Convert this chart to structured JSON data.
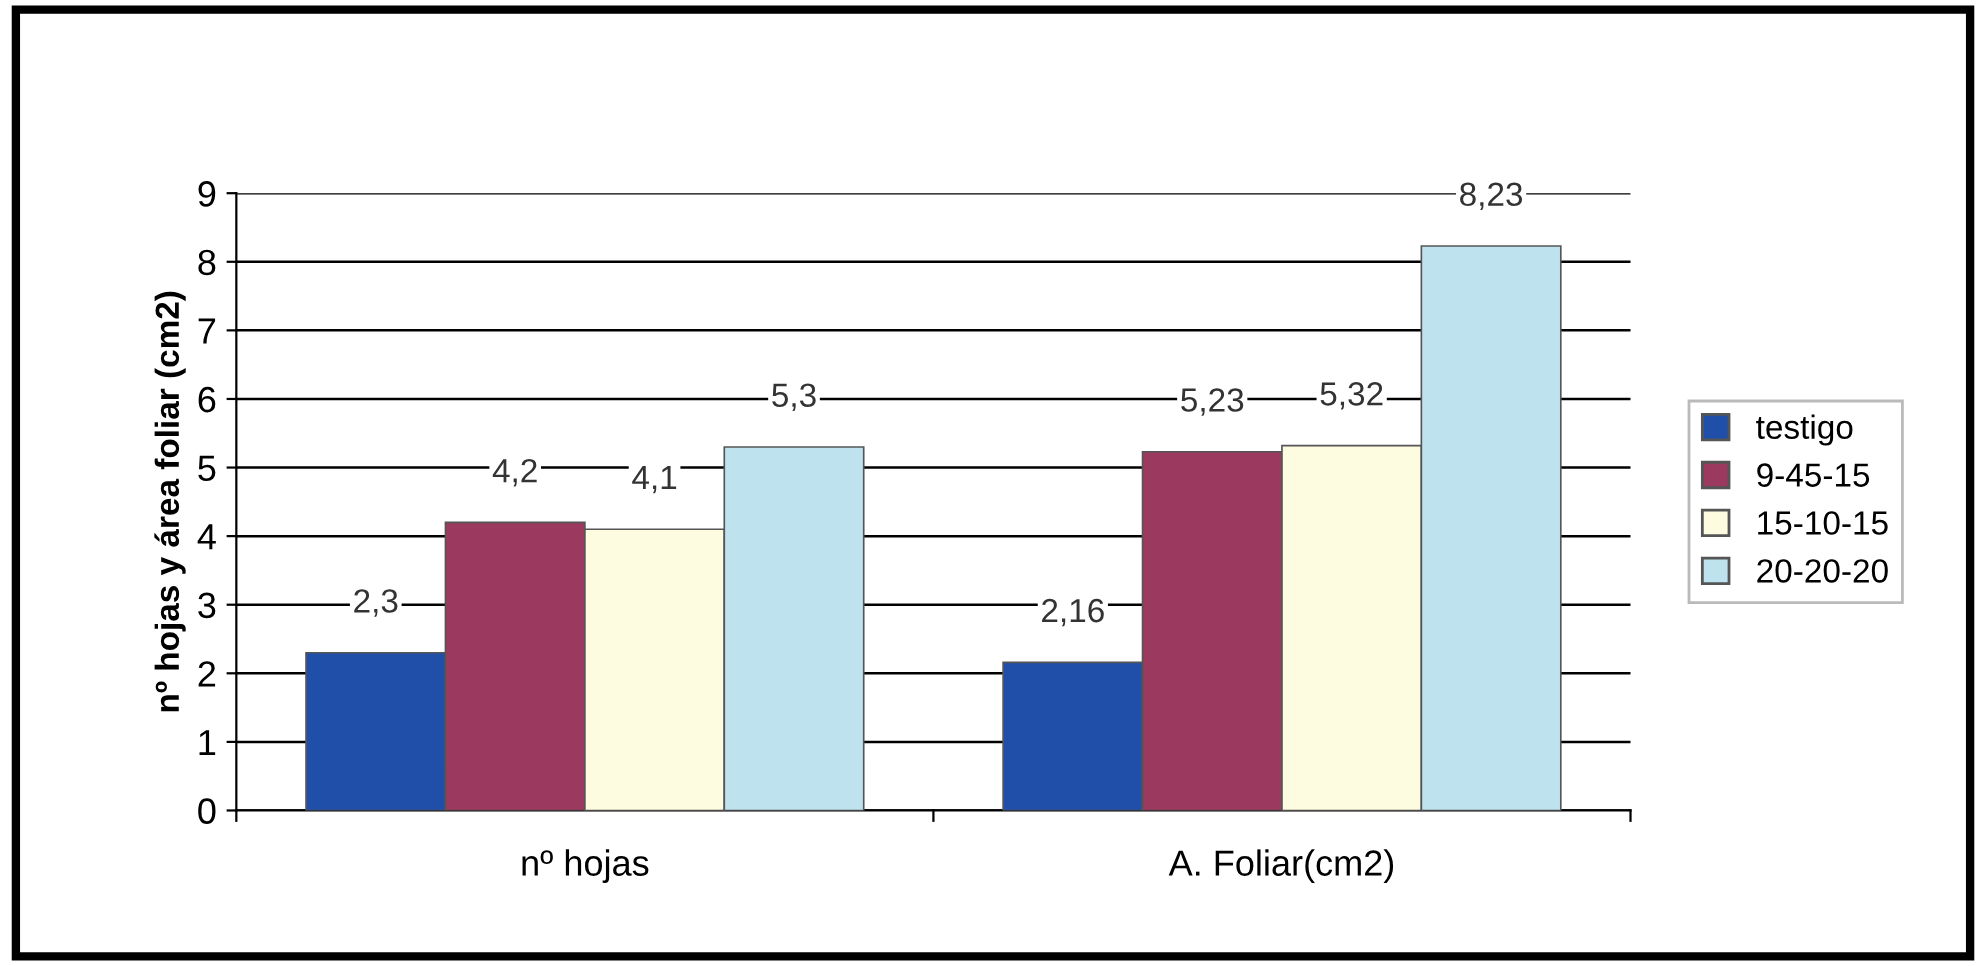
{
  "chart_data": {
    "type": "bar",
    "ylabel": "nº hojas y área foliar (cm2)",
    "categories": [
      "nº hojas",
      "A. Foliar(cm2)"
    ],
    "series": [
      {
        "name": "testigo",
        "color": "#1f4fa8",
        "values": [
          2.3,
          2.16
        ],
        "value_labels": [
          "2,3",
          "2,16"
        ]
      },
      {
        "name": "9-45-15",
        "color": "#9b3a5e",
        "values": [
          4.2,
          5.23
        ],
        "value_labels": [
          "4,2",
          "5,23"
        ]
      },
      {
        "name": "15-10-15",
        "color": "#fdfbe0",
        "values": [
          4.1,
          5.32
        ],
        "value_labels": [
          "4,1",
          "5,32"
        ]
      },
      {
        "name": "20-20-20",
        "color": "#bfe3ee",
        "values": [
          5.3,
          8.23
        ],
        "value_labels": [
          "5,3",
          "8,23"
        ]
      }
    ],
    "ylim": [
      0,
      9
    ],
    "yticks": [
      0,
      1,
      2,
      3,
      4,
      5,
      6,
      7,
      8,
      9
    ],
    "grid": "y",
    "legend": "right"
  }
}
